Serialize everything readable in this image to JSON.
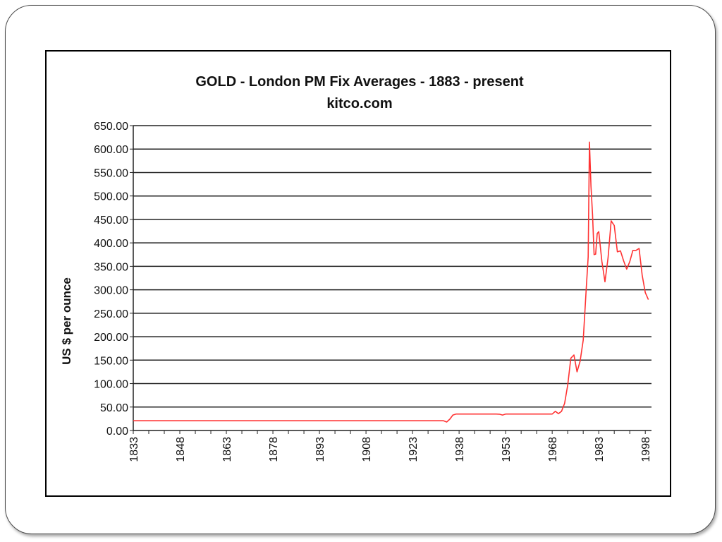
{
  "chart_data": {
    "type": "line",
    "title": "GOLD  -  London PM Fix Averages  -  1883 - present",
    "subtitle": "kitco.com",
    "xlabel": "",
    "ylabel": "US $ per ounce",
    "xlim": [
      1833,
      2000
    ],
    "ylim": [
      0,
      650
    ],
    "x_ticks": [
      "1833",
      "1848",
      "1863",
      "1878",
      "1893",
      "1908",
      "1923",
      "1938",
      "1953",
      "1968",
      "1983",
      "1998"
    ],
    "y_ticks": [
      "0.00",
      "50.00",
      "100.00",
      "150.00",
      "200.00",
      "250.00",
      "300.00",
      "350.00",
      "400.00",
      "450.00",
      "500.00",
      "550.00",
      "600.00",
      "650.00"
    ],
    "grid": true,
    "legend": "none",
    "series": [
      {
        "color": "#ff3333",
        "points": [
          [
            1833,
            20.7
          ],
          [
            1900,
            20.7
          ],
          [
            1933,
            20.7
          ],
          [
            1934,
            18
          ],
          [
            1935,
            24
          ],
          [
            1936,
            33
          ],
          [
            1937,
            35
          ],
          [
            1945,
            35
          ],
          [
            1950,
            35
          ],
          [
            1951,
            34.7
          ],
          [
            1952,
            33
          ],
          [
            1953,
            35
          ],
          [
            1960,
            35
          ],
          [
            1965,
            35
          ],
          [
            1968,
            35
          ],
          [
            1969,
            41
          ],
          [
            1970,
            36
          ],
          [
            1971,
            41
          ],
          [
            1972,
            58
          ],
          [
            1973,
            97
          ],
          [
            1974,
            154
          ],
          [
            1975,
            161
          ],
          [
            1976,
            125
          ],
          [
            1977,
            148
          ],
          [
            1978,
            193
          ],
          [
            1979,
            306
          ],
          [
            1979.6,
            370
          ],
          [
            1980,
            615
          ],
          [
            1980.5,
            520
          ],
          [
            1981,
            460
          ],
          [
            1981.5,
            375
          ],
          [
            1982,
            376
          ],
          [
            1982.5,
            420
          ],
          [
            1983,
            424
          ],
          [
            1984,
            361
          ],
          [
            1985,
            317
          ],
          [
            1986,
            368
          ],
          [
            1987,
            447
          ],
          [
            1988,
            437
          ],
          [
            1989,
            381
          ],
          [
            1990,
            383
          ],
          [
            1991,
            362
          ],
          [
            1992,
            344
          ],
          [
            1993,
            360
          ],
          [
            1994,
            384
          ],
          [
            1995,
            384
          ],
          [
            1996,
            388
          ],
          [
            1997,
            331
          ],
          [
            1998,
            294
          ],
          [
            1999,
            279
          ]
        ]
      }
    ]
  }
}
